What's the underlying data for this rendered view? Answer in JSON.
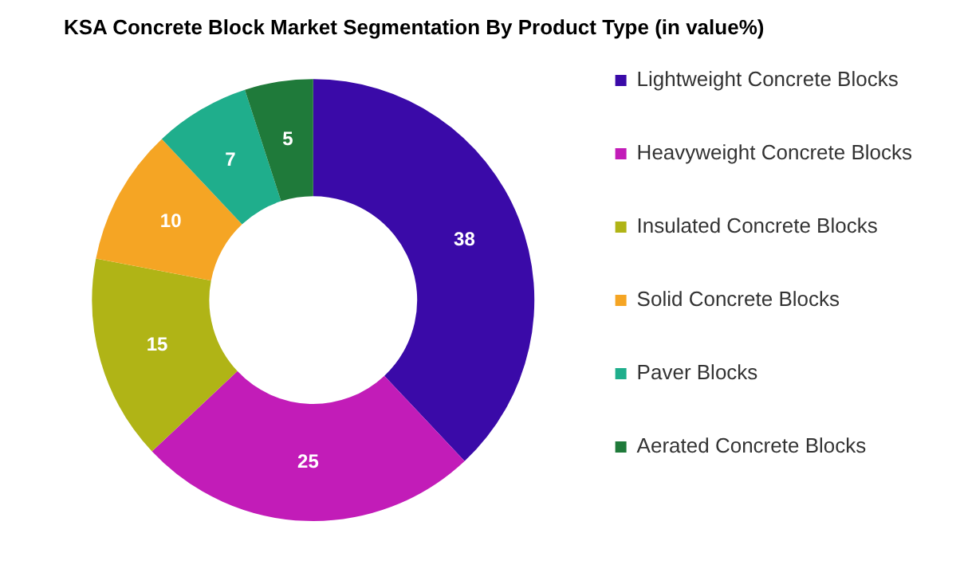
{
  "chart_data": {
    "type": "donut",
    "title": "KSA Concrete Block Market Segmentation By Product Type (in value%)",
    "categories": [
      "Lightweight Concrete Blocks",
      "Heavyweight Concrete Blocks",
      "Insulated Concrete Blocks",
      "Solid Concrete Blocks",
      "Paver Blocks",
      "Aerated Concrete Blocks"
    ],
    "values": [
      38,
      25,
      15,
      10,
      7,
      5
    ],
    "colors": [
      "#3a0aa8",
      "#c21cb8",
      "#b0b416",
      "#f5a524",
      "#1fae8c",
      "#1f7a3a"
    ],
    "data_labels": true,
    "legend": "right"
  }
}
